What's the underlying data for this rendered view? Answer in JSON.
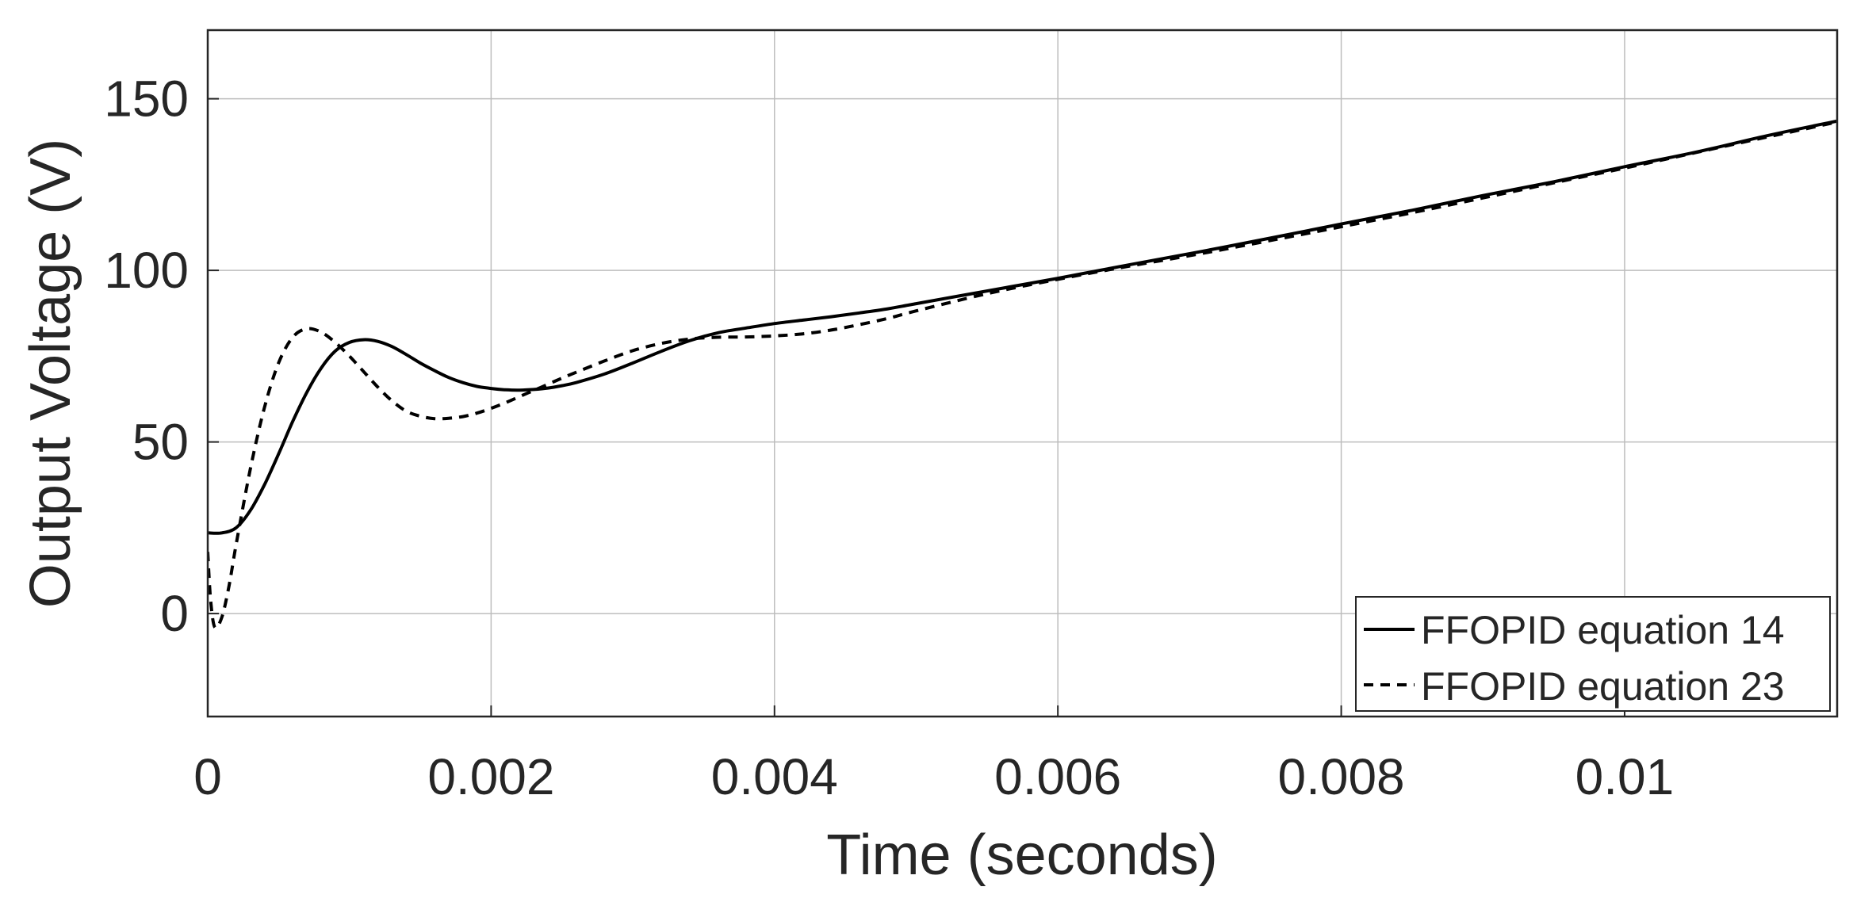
{
  "chart_data": {
    "type": "line",
    "title": "",
    "xlabel": "Time (seconds)",
    "ylabel": "Output Voltage (V)",
    "xlim": [
      0,
      0.0115
    ],
    "ylim": [
      -30,
      170
    ],
    "grid": true,
    "legend_position": "bottom-right",
    "xticks": [
      {
        "value": 0,
        "label": "0"
      },
      {
        "value": 0.002,
        "label": "0.002"
      },
      {
        "value": 0.004,
        "label": "0.004"
      },
      {
        "value": 0.006,
        "label": "0.006"
      },
      {
        "value": 0.008,
        "label": "0.008"
      },
      {
        "value": 0.01,
        "label": "0.01"
      }
    ],
    "yticks": [
      {
        "value": 0,
        "label": "0"
      },
      {
        "value": 50,
        "label": "50"
      },
      {
        "value": 100,
        "label": "100"
      },
      {
        "value": 150,
        "label": "150"
      }
    ],
    "series": [
      {
        "name": "FFOPID equation 14",
        "style": "solid",
        "color": "#000000",
        "x": [
          0,
          0.0001,
          0.0002,
          0.0003,
          0.0004,
          0.0005,
          0.0006,
          0.0007,
          0.0008,
          0.0009,
          0.001,
          0.0011,
          0.0012,
          0.0013,
          0.0014,
          0.0015,
          0.0016,
          0.0017,
          0.0018,
          0.0019,
          0.002,
          0.0021,
          0.0022,
          0.0023,
          0.0024,
          0.0025,
          0.0026,
          0.0028,
          0.003,
          0.0032,
          0.0034,
          0.0036,
          0.0038,
          0.004,
          0.0042,
          0.0044,
          0.0046,
          0.0048,
          0.005,
          0.0055,
          0.006,
          0.0065,
          0.007,
          0.0075,
          0.008,
          0.0085,
          0.009,
          0.0095,
          0.01,
          0.0105,
          0.011,
          0.0115
        ],
        "y": [
          23.5,
          23.5,
          25,
          30,
          37.5,
          46.5,
          56,
          64.5,
          71.5,
          76.5,
          79,
          79.8,
          79.3,
          77.8,
          75.5,
          73,
          70.8,
          68.8,
          67.3,
          66.2,
          65.6,
          65.2,
          65.1,
          65.3,
          65.7,
          66.4,
          67.3,
          69.8,
          73,
          76.4,
          79.5,
          81.8,
          83.2,
          84.5,
          85.5,
          86.5,
          87.6,
          88.8,
          90.3,
          94,
          97.7,
          101.6,
          105.4,
          109.4,
          113.5,
          117.5,
          121.8,
          125.8,
          130.2,
          134.4,
          139.2,
          143.5
        ]
      },
      {
        "name": "FFOPID equation 23",
        "style": "dashed",
        "color": "#000000",
        "x": [
          0,
          2e-05,
          5e-05,
          0.0001,
          0.00015,
          0.0002,
          0.0003,
          0.0004,
          0.0005,
          0.0006,
          0.0007,
          0.0008,
          0.0009,
          0.001,
          0.0011,
          0.0012,
          0.0013,
          0.0014,
          0.0015,
          0.0016,
          0.0017,
          0.0018,
          0.0019,
          0.002,
          0.0021,
          0.0022,
          0.0023,
          0.0024,
          0.0025,
          0.0026,
          0.0028,
          0.003,
          0.0032,
          0.0034,
          0.0036,
          0.0038,
          0.004,
          0.0042,
          0.0044,
          0.0046,
          0.0048,
          0.005,
          0.0055,
          0.006,
          0.0065,
          0.007,
          0.0075,
          0.008,
          0.0085,
          0.009,
          0.0095,
          0.01,
          0.0105,
          0.011,
          0.0115
        ],
        "y": [
          18,
          4,
          -4,
          -1,
          8,
          20,
          42,
          60,
          73,
          80.5,
          83,
          82,
          79,
          75,
          70.5,
          66,
          62,
          59,
          57.5,
          56.8,
          56.9,
          57.4,
          58.4,
          59.8,
          61.4,
          63.2,
          65,
          66.8,
          68.6,
          70.3,
          73.6,
          76.6,
          78.7,
          80,
          80.5,
          80.6,
          80.9,
          81.5,
          82.6,
          84.2,
          86,
          88.2,
          93.2,
          97.4,
          101.2,
          104.8,
          108.7,
          112.7,
          116.8,
          121.1,
          125.5,
          129.8,
          134.3,
          138.8,
          143.2
        ]
      }
    ]
  }
}
